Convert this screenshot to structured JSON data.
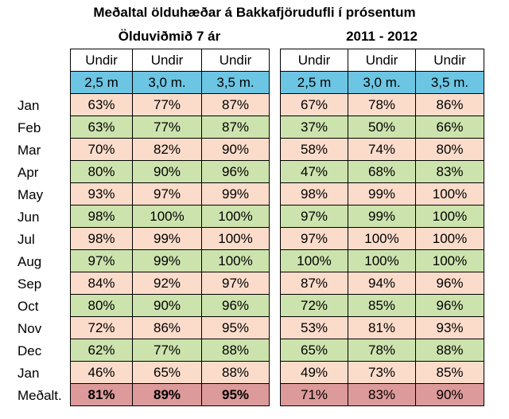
{
  "title": "Meðaltal ölduhæðar á Bakkafjörudufli í prósentum",
  "left_group_title": "Ölduviðmið 7 ár",
  "right_group_title": "2011 - 2012",
  "header_row": [
    "Undir",
    "Undir",
    "Undir"
  ],
  "sub_header_row": [
    "2,5 m",
    "3,0 m.",
    "3,5 m."
  ],
  "row_labels": [
    "Jan",
    "Feb",
    "Mar",
    "Apr",
    "May",
    "Jun",
    "Jul",
    "Aug",
    "Sep",
    "Oct",
    "Nov",
    "Dec",
    "Jan",
    "Meðalt."
  ],
  "left_values": [
    [
      "63%",
      "77%",
      "87%"
    ],
    [
      "63%",
      "77%",
      "87%"
    ],
    [
      "70%",
      "82%",
      "90%"
    ],
    [
      "80%",
      "90%",
      "96%"
    ],
    [
      "93%",
      "97%",
      "99%"
    ],
    [
      "98%",
      "100%",
      "100%"
    ],
    [
      "98%",
      "99%",
      "100%"
    ],
    [
      "97%",
      "99%",
      "100%"
    ],
    [
      "84%",
      "92%",
      "97%"
    ],
    [
      "80%",
      "90%",
      "96%"
    ],
    [
      "72%",
      "86%",
      "95%"
    ],
    [
      "62%",
      "77%",
      "88%"
    ],
    [
      "46%",
      "65%",
      "88%"
    ],
    [
      "81%",
      "89%",
      "95%"
    ]
  ],
  "right_values": [
    [
      "67%",
      "78%",
      "86%"
    ],
    [
      "37%",
      "50%",
      "66%"
    ],
    [
      "58%",
      "74%",
      "80%"
    ],
    [
      "47%",
      "68%",
      "83%"
    ],
    [
      "98%",
      "99%",
      "100%"
    ],
    [
      "97%",
      "99%",
      "100%"
    ],
    [
      "97%",
      "100%",
      "100%"
    ],
    [
      "100%",
      "100%",
      "100%"
    ],
    [
      "87%",
      "94%",
      "96%"
    ],
    [
      "72%",
      "85%",
      "96%"
    ],
    [
      "53%",
      "81%",
      "93%"
    ],
    [
      "65%",
      "78%",
      "88%"
    ],
    [
      "49%",
      "73%",
      "85%"
    ],
    [
      "71%",
      "83%",
      "90%"
    ]
  ],
  "colors": {
    "header_blue": "#6cc5e3",
    "row_peach": "#fbdccb",
    "row_green": "#cde3ae",
    "average_red": "#dd9a9a"
  }
}
